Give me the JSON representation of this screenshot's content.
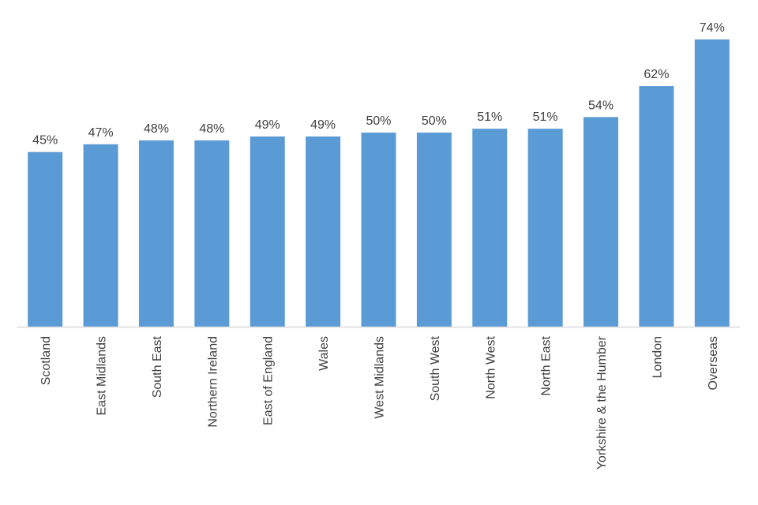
{
  "chart_data": {
    "type": "bar",
    "title": "",
    "xlabel": "",
    "ylabel": "",
    "categories": [
      "Scotland",
      "East Midlands",
      "South East",
      "Northern Ireland",
      "East of England",
      "Wales",
      "West Midlands",
      "South West",
      "North West",
      "North East",
      "Yorkshire & the Humber",
      "London",
      "Overseas"
    ],
    "values": [
      45,
      47,
      48,
      48,
      49,
      49,
      50,
      50,
      51,
      51,
      54,
      62,
      74
    ],
    "value_labels": [
      "45%",
      "47%",
      "48%",
      "48%",
      "49%",
      "49%",
      "50%",
      "50%",
      "51%",
      "51%",
      "54%",
      "62%",
      "74%"
    ],
    "ylim": [
      0,
      74
    ],
    "grid": false,
    "legend": "none",
    "bar_color": "#5B9BD5",
    "axis_color": "#D9D9D9",
    "text_color": "#404040"
  }
}
